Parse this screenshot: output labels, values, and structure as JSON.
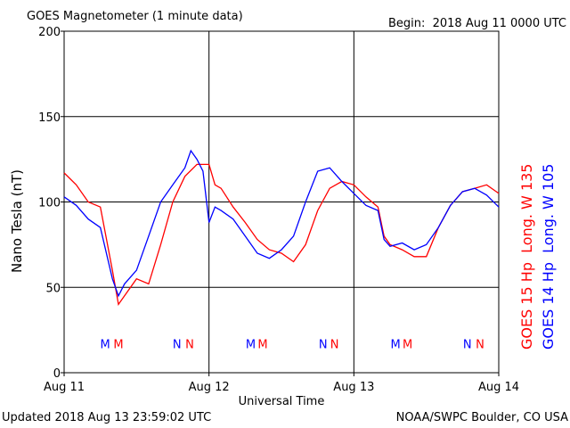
{
  "chart_data": {
    "type": "line",
    "title": "GOES Magnetometer (1 minute data)",
    "subtitle": "Begin:  2018 Aug 11 0000 UTC",
    "x_label": "Universal Time",
    "y_label": "Nano Tesla (nT)",
    "footer_left": "Updated 2018 Aug 13 23:59:02 UTC",
    "footer_right": "NOAA/SWPC Boulder, CO USA",
    "xlim": [
      0,
      72
    ],
    "xticks": [
      {
        "value": 0,
        "label": "Aug 11"
      },
      {
        "value": 24,
        "label": "Aug 12"
      },
      {
        "value": 48,
        "label": "Aug 13"
      },
      {
        "value": 72,
        "label": "Aug 14"
      }
    ],
    "ylim": [
      0,
      200
    ],
    "yticks": [
      0,
      50,
      100,
      150,
      200
    ],
    "grid": true,
    "series": [
      {
        "name": "GOES 15 Hp  Long. W 135",
        "color": "#ff0000",
        "x": [
          0,
          2,
          4,
          6,
          8,
          9,
          10,
          12,
          14,
          16,
          18,
          20,
          22,
          24,
          25,
          26,
          28,
          30,
          32,
          34,
          36,
          38,
          40,
          42,
          44,
          46,
          48,
          50,
          52,
          53,
          54,
          56,
          58,
          60,
          62,
          64,
          66,
          68,
          70,
          72
        ],
        "values": [
          117,
          110,
          100,
          97,
          60,
          40,
          45,
          55,
          52,
          75,
          100,
          115,
          122,
          122,
          110,
          108,
          97,
          88,
          78,
          72,
          70,
          65,
          75,
          95,
          108,
          112,
          110,
          103,
          97,
          80,
          75,
          72,
          68,
          68,
          85,
          98,
          106,
          108,
          110,
          105
        ]
      },
      {
        "name": "GOES 14 Hp  Long. W 105",
        "color": "#0000ff",
        "x": [
          0,
          2,
          4,
          6,
          8,
          9,
          10,
          12,
          14,
          16,
          18,
          20,
          21,
          22,
          23,
          24,
          25,
          26,
          28,
          30,
          32,
          34,
          36,
          38,
          40,
          42,
          44,
          46,
          48,
          50,
          52,
          53,
          54,
          56,
          58,
          60,
          62,
          64,
          66,
          68,
          70,
          72
        ],
        "values": [
          103,
          98,
          90,
          85,
          55,
          45,
          52,
          60,
          80,
          100,
          110,
          120,
          130,
          125,
          118,
          88,
          97,
          95,
          90,
          80,
          70,
          67,
          72,
          80,
          100,
          118,
          120,
          112,
          105,
          98,
          95,
          78,
          74,
          76,
          72,
          75,
          85,
          98,
          106,
          108,
          104,
          97
        ]
      }
    ],
    "annotations": [
      {
        "text": "M",
        "x": 6.8,
        "y": 17,
        "color": "#0000ff"
      },
      {
        "text": "M",
        "x": 9,
        "y": 17,
        "color": "#ff0000"
      },
      {
        "text": "N",
        "x": 18.7,
        "y": 17,
        "color": "#0000ff"
      },
      {
        "text": "N",
        "x": 20.8,
        "y": 17,
        "color": "#ff0000"
      },
      {
        "text": "M",
        "x": 30.9,
        "y": 17,
        "color": "#0000ff"
      },
      {
        "text": "M",
        "x": 32.9,
        "y": 17,
        "color": "#ff0000"
      },
      {
        "text": "N",
        "x": 42.9,
        "y": 17,
        "color": "#0000ff"
      },
      {
        "text": "N",
        "x": 44.8,
        "y": 17,
        "color": "#ff0000"
      },
      {
        "text": "M",
        "x": 54.9,
        "y": 17,
        "color": "#0000ff"
      },
      {
        "text": "M",
        "x": 56.9,
        "y": 17,
        "color": "#ff0000"
      },
      {
        "text": "N",
        "x": 66.8,
        "y": 17,
        "color": "#0000ff"
      },
      {
        "text": "N",
        "x": 68.9,
        "y": 17,
        "color": "#ff0000"
      }
    ]
  }
}
